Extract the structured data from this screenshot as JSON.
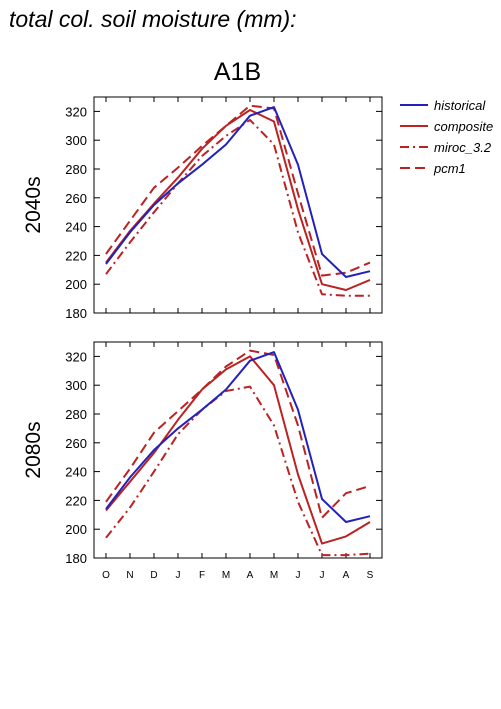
{
  "title": "total col. soil moisture (mm):",
  "scenario": "A1B",
  "colors": {
    "historical": "#2222bb",
    "projections": "#bb2222"
  },
  "legend": [
    {
      "label": "historical",
      "color": "#2222bb",
      "dash": "solid"
    },
    {
      "label": "composite",
      "color": "#bb2222",
      "dash": "solid"
    },
    {
      "label": "miroc_3.2",
      "color": "#bb2222",
      "dash": "dashdot"
    },
    {
      "label": "pcm1",
      "color": "#bb2222",
      "dash": "dashed"
    }
  ],
  "chart_data": [
    {
      "type": "line",
      "row_label": "2040s",
      "categories": [
        "O",
        "N",
        "D",
        "J",
        "F",
        "M",
        "A",
        "M",
        "J",
        "J",
        "A",
        "S"
      ],
      "ylim": [
        180,
        330
      ],
      "yticks": [
        180,
        200,
        220,
        240,
        260,
        280,
        300,
        320
      ],
      "series": [
        {
          "name": "historical",
          "values": [
            214,
            236,
            255,
            270,
            283,
            297,
            317,
            323,
            283,
            221,
            205,
            209
          ]
        },
        {
          "name": "composite",
          "values": [
            215,
            237,
            256,
            274,
            294,
            310,
            321,
            313,
            252,
            200,
            196,
            203
          ]
        },
        {
          "name": "miroc_3.2",
          "values": [
            207,
            229,
            250,
            270,
            289,
            303,
            314,
            297,
            236,
            193,
            192,
            192
          ]
        },
        {
          "name": "pcm1",
          "values": [
            221,
            244,
            267,
            281,
            296,
            310,
            324,
            322,
            263,
            206,
            208,
            215
          ]
        }
      ]
    },
    {
      "type": "line",
      "row_label": "2080s",
      "categories": [
        "O",
        "N",
        "D",
        "J",
        "F",
        "M",
        "A",
        "M",
        "J",
        "J",
        "A",
        "S"
      ],
      "ylim": [
        180,
        330
      ],
      "yticks": [
        180,
        200,
        220,
        240,
        260,
        280,
        300,
        320
      ],
      "series": [
        {
          "name": "historical",
          "values": [
            214,
            236,
            255,
            270,
            283,
            297,
            317,
            323,
            283,
            221,
            205,
            209
          ]
        },
        {
          "name": "composite",
          "values": [
            213,
            233,
            253,
            276,
            297,
            311,
            320,
            300,
            238,
            190,
            195,
            205
          ]
        },
        {
          "name": "miroc_3.2",
          "values": [
            194,
            215,
            240,
            266,
            283,
            296,
            299,
            272,
            219,
            182,
            182,
            183
          ]
        },
        {
          "name": "pcm1",
          "values": [
            219,
            242,
            267,
            282,
            297,
            313,
            324,
            321,
            272,
            208,
            225,
            230
          ]
        }
      ]
    }
  ]
}
